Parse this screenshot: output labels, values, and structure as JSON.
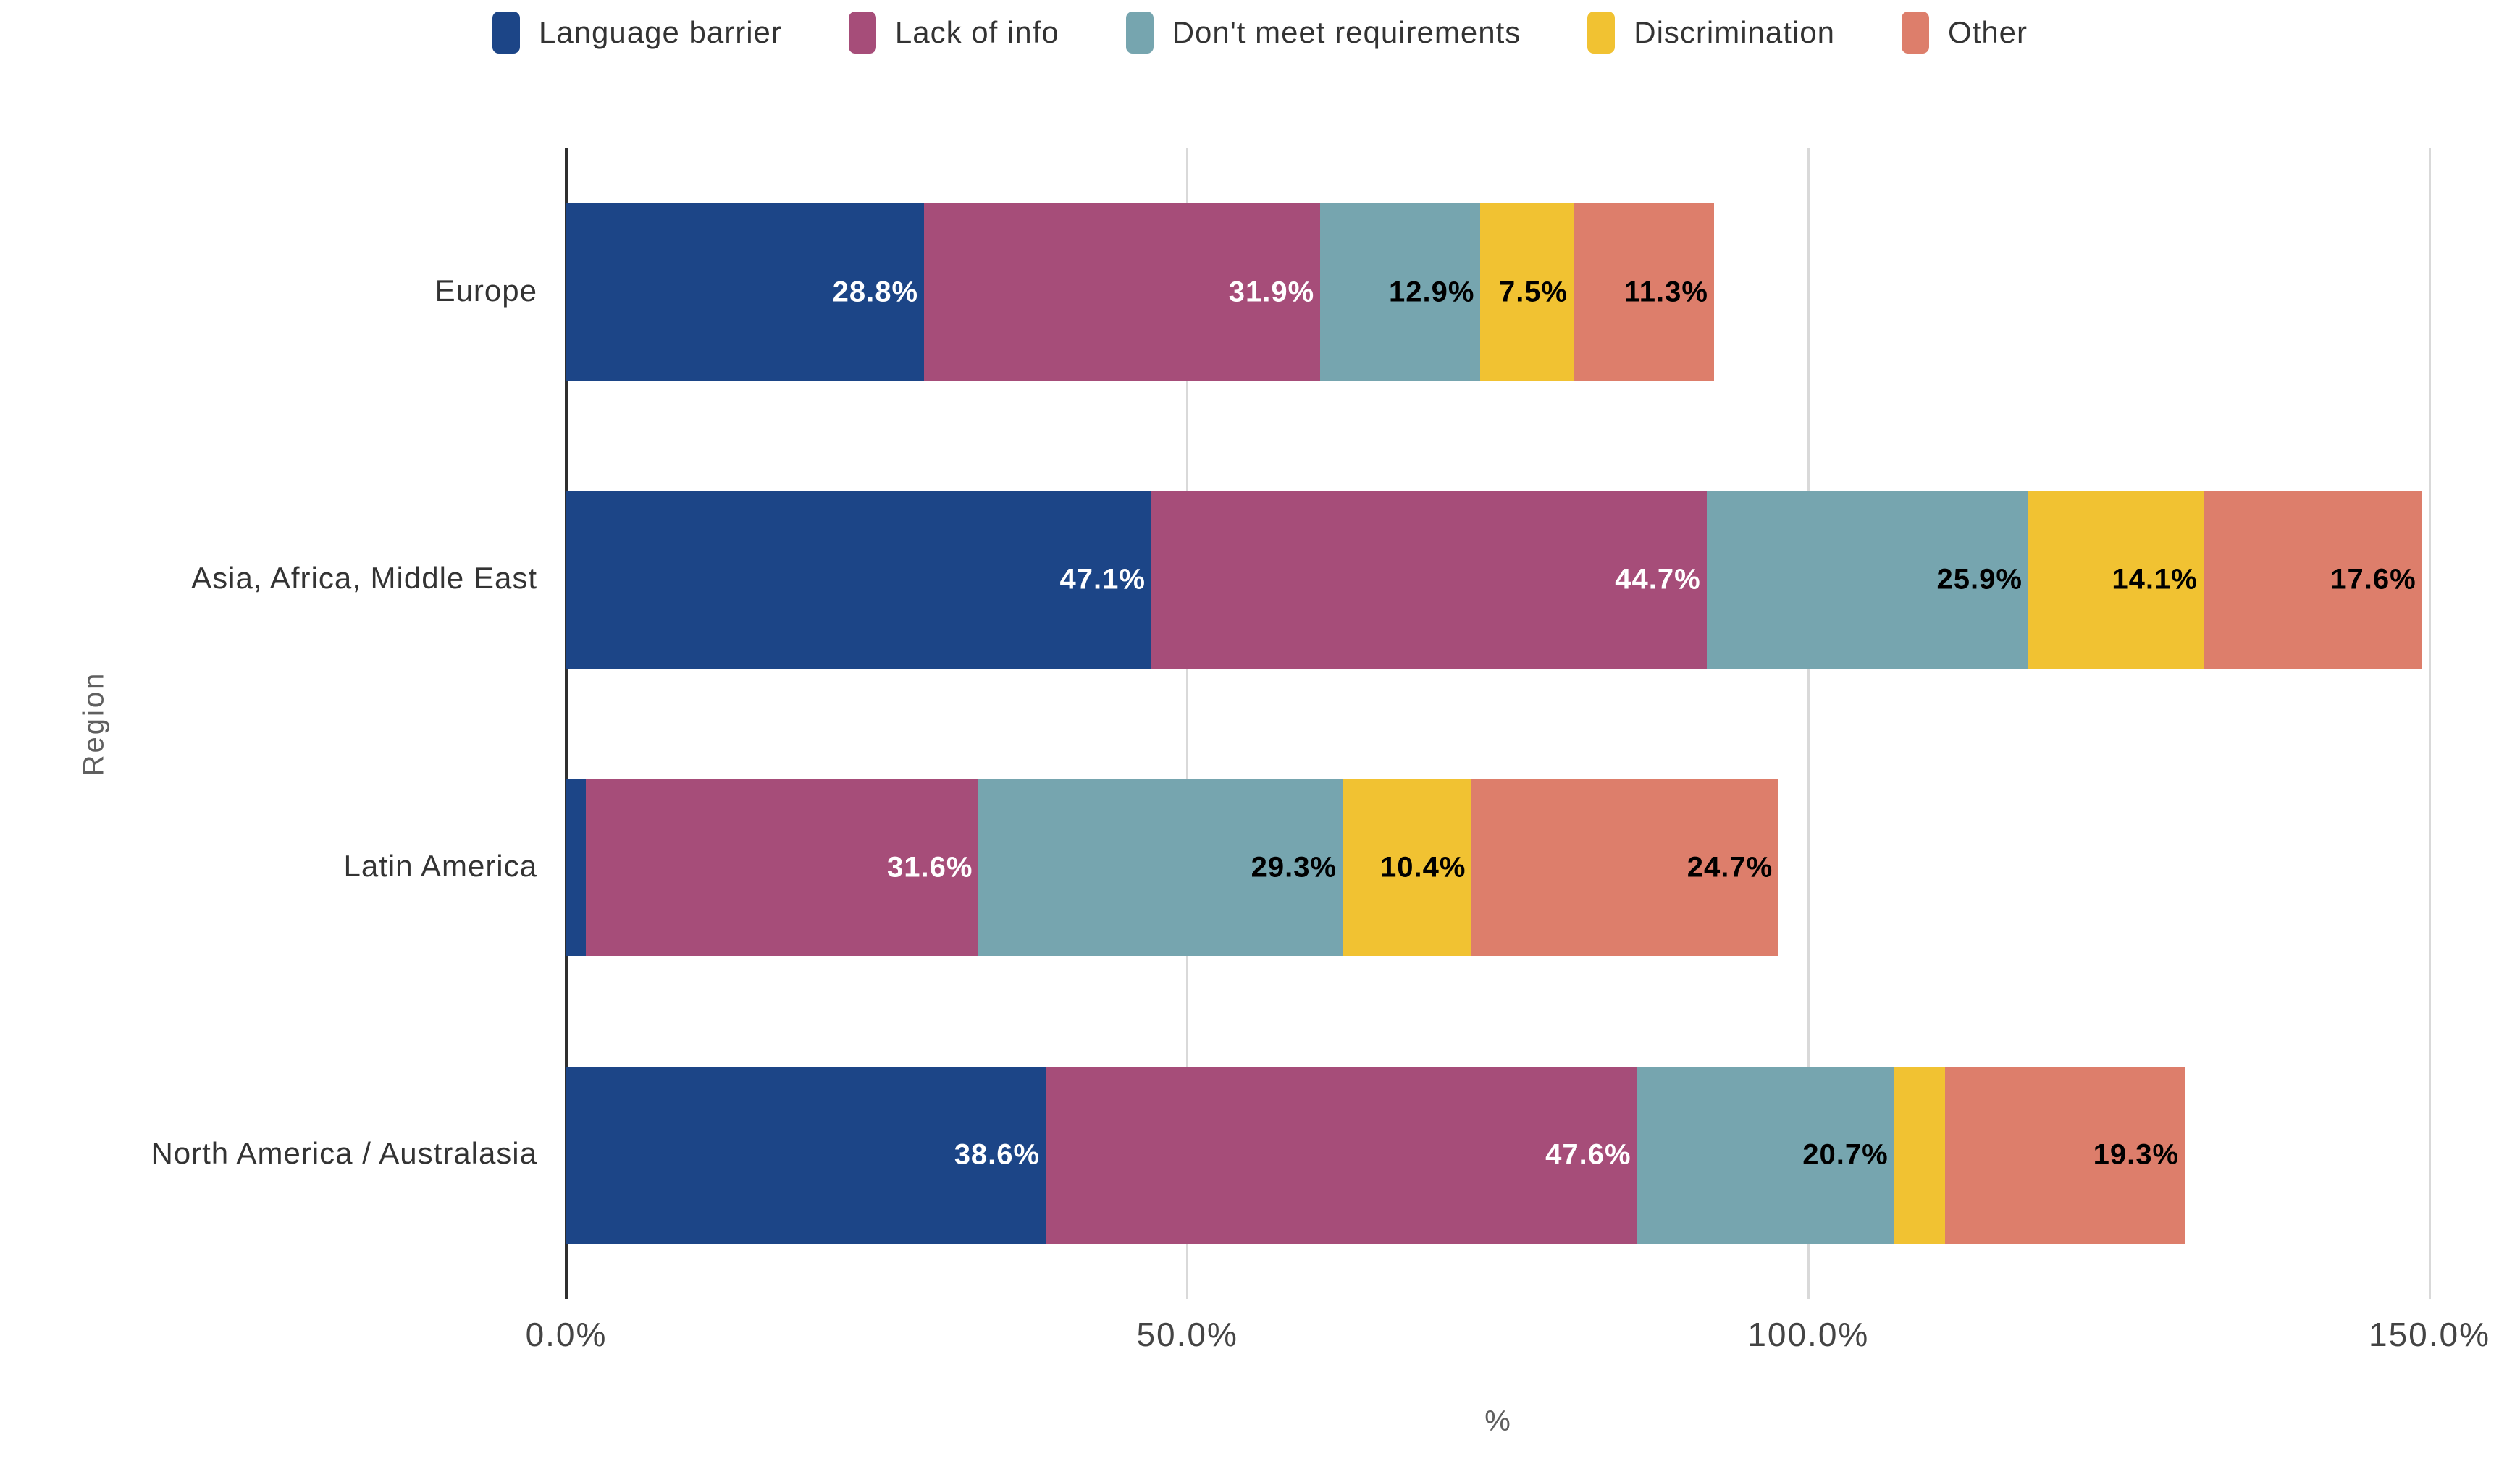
{
  "legend": {
    "items": [
      {
        "label": "Language barrier",
        "color": "#1c4587"
      },
      {
        "label": "Lack of info",
        "color": "#a64d79"
      },
      {
        "label": "Don't meet requirements",
        "color": "#76a5af"
      },
      {
        "label": "Discrimination",
        "color": "#f1c232"
      },
      {
        "label": "Other",
        "color": "#dd7e6b"
      }
    ]
  },
  "chart_data": {
    "type": "bar",
    "stacked": true,
    "orientation": "horizontal",
    "xlabel": "%",
    "ylabel": "Region",
    "categories": [
      "Europe",
      "Asia, Africa, Middle East",
      "Latin America",
      "North America / Australasia"
    ],
    "series": [
      {
        "name": "Language barrier",
        "color": "#1c4587",
        "label_style": "light",
        "values": [
          28.8,
          47.1,
          1.6,
          38.6
        ]
      },
      {
        "name": "Lack of info",
        "color": "#a64d79",
        "label_style": "light",
        "values": [
          31.9,
          44.7,
          31.6,
          47.6
        ]
      },
      {
        "name": "Don't meet requirements",
        "color": "#76a5af",
        "label_style": "dark",
        "values": [
          12.9,
          25.9,
          29.3,
          20.7
        ]
      },
      {
        "name": "Discrimination",
        "color": "#f1c232",
        "label_style": "dark",
        "values": [
          7.5,
          14.1,
          10.4,
          4.1
        ]
      },
      {
        "name": "Other",
        "color": "#dd7e6b",
        "label_style": "dark",
        "values": [
          11.3,
          17.6,
          24.7,
          19.3
        ]
      }
    ],
    "xlim": [
      0,
      150
    ],
    "xticks": [
      "0.0%",
      "50.0%",
      "100.0%",
      "150.0%"
    ],
    "xtick_values": [
      0,
      50,
      100,
      150
    ],
    "value_suffix": "%",
    "grid": "vertical",
    "legend_position": "top",
    "label_colors": {
      "light": "#ffffff",
      "dark": "#000000"
    }
  }
}
